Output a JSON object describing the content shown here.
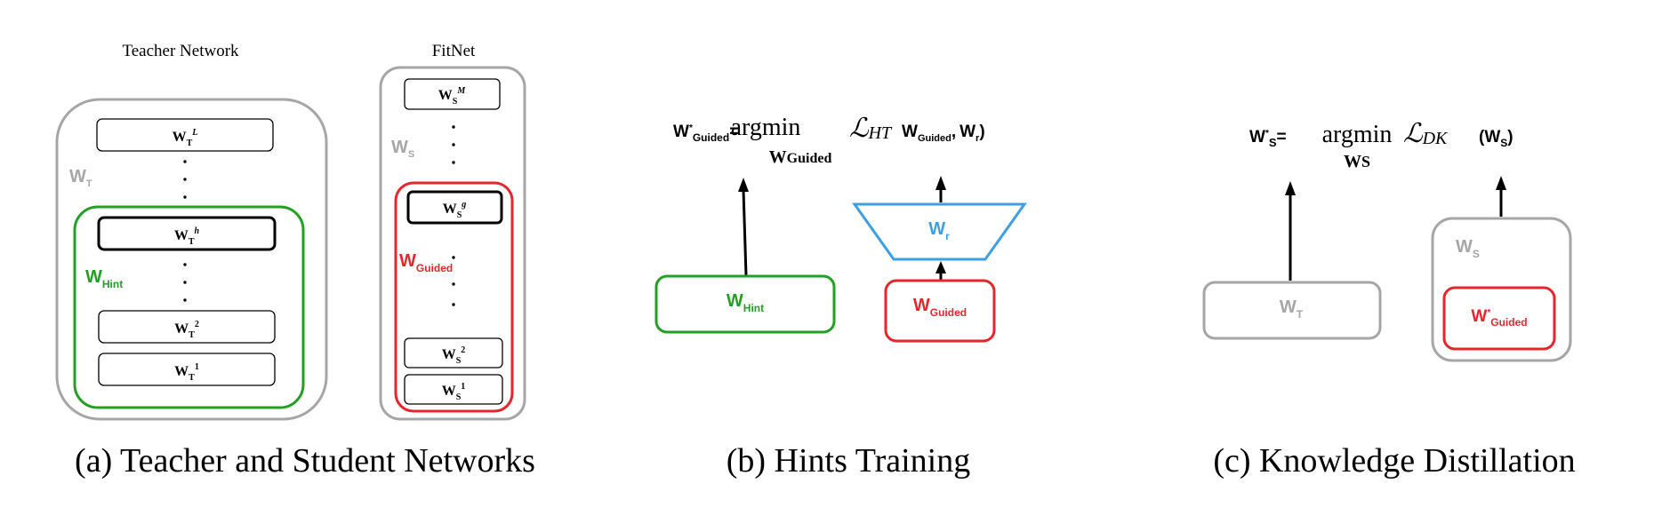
{
  "panel_a": {
    "caption": "(a) Teacher and Student Networks",
    "teacher": {
      "title": "Teacher Network",
      "group": {
        "base": "W",
        "sub": "T"
      },
      "hint_group": {
        "base": "W",
        "sub": "Hint"
      },
      "layers": [
        {
          "base": "W",
          "sub": "T",
          "sup": "L",
          "highlight": false
        },
        {
          "base": "W",
          "sub": "T",
          "sup": "h",
          "highlight": true
        },
        {
          "base": "W",
          "sub": "T",
          "sup": "2",
          "highlight": false
        },
        {
          "base": "W",
          "sub": "T",
          "sup": "1",
          "highlight": false
        }
      ]
    },
    "student": {
      "title": "FitNet",
      "group": {
        "base": "W",
        "sub": "S"
      },
      "guided_group": {
        "base": "W",
        "sub": "Guided"
      },
      "layers": [
        {
          "base": "W",
          "sub": "S",
          "sup": "M",
          "highlight": false
        },
        {
          "base": "W",
          "sub": "S",
          "sup": "g",
          "highlight": true
        },
        {
          "base": "W",
          "sub": "S",
          "sup": "2",
          "highlight": false
        },
        {
          "base": "W",
          "sub": "S",
          "sup": "1",
          "highlight": false
        }
      ]
    }
  },
  "panel_b": {
    "caption": "(b) Hints Training",
    "formula": {
      "lhs_base": "W",
      "lhs_star": "*",
      "lhs_sub": "Guided",
      "eq": "=",
      "op": "argmin",
      "op_sub": "W",
      "op_sub_small": "Guided",
      "loss_symbol": "ℒ",
      "loss_sub": "HT",
      "arg1_base": "W",
      "arg1_sub": "Guided",
      "comma": ",",
      "arg2_base": "W",
      "arg2_sub": "r"
    },
    "hint_box": {
      "base": "W",
      "sub": "Hint"
    },
    "guided_box": {
      "base": "W",
      "sub": "Guided"
    },
    "regressor": {
      "base": "W",
      "sub": "r"
    }
  },
  "panel_c": {
    "caption": "(c) Knowledge Distillation",
    "formula": {
      "lhs_base": "W",
      "lhs_star": "*",
      "lhs_sub": "S",
      "eq": "=",
      "op": "argmin",
      "op_sub": "W",
      "op_sub_small": "S",
      "loss_symbol": "ℒ",
      "loss_sub": "DK",
      "arg_base": "W",
      "arg_sub": "S"
    },
    "teacher_box": {
      "base": "W",
      "sub": "T"
    },
    "student_group": {
      "base": "W",
      "sub": "S"
    },
    "guided_box": {
      "base": "W",
      "star": "*",
      "sub": "Guided"
    }
  },
  "colors": {
    "gray": "#a6a6a6",
    "green": "#22a022",
    "red": "#e8252b",
    "blue": "#3d9fe3",
    "black": "#000000"
  }
}
